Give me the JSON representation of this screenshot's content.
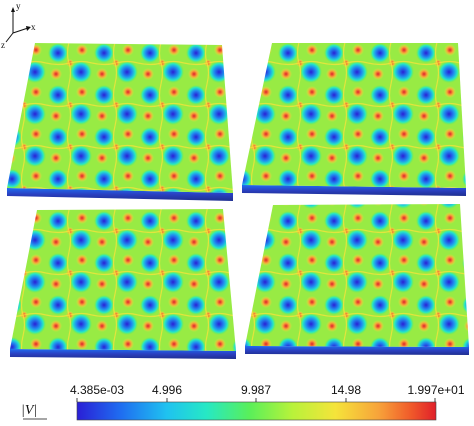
{
  "axes_indicator": {
    "labels": {
      "y": "y",
      "x": "x",
      "z": "z"
    }
  },
  "panels": [
    {
      "id": "top-left"
    },
    {
      "id": "top-right"
    },
    {
      "id": "bottom-left"
    },
    {
      "id": "bottom-right"
    }
  ],
  "colorbar": {
    "title": "|V|",
    "ticks": [
      "4.385e-03",
      "4.996",
      "9.987",
      "14.98",
      "1.997e+01"
    ],
    "range": [
      0.004385,
      19.97
    ],
    "colormap": [
      "#2a1fd6",
      "#1f6cf0",
      "#1fc2f0",
      "#26e8c5",
      "#59ef5a",
      "#b8f23a",
      "#f5e43a",
      "#f7a33a",
      "#f05a2a",
      "#e01f2a"
    ]
  }
}
